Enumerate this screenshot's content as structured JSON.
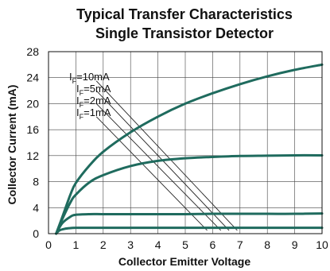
{
  "chart_data": {
    "type": "line",
    "title": "Typical Transfer Characteristics",
    "subtitle": "Single Transistor Detector",
    "xlabel": "Collector Emitter Voltage",
    "ylabel": "Collector Current (mA)",
    "xlim": [
      0,
      10
    ],
    "ylim": [
      0,
      28
    ],
    "xticks": [
      0,
      1,
      2,
      3,
      4,
      5,
      6,
      7,
      8,
      9,
      10
    ],
    "yticks": [
      0,
      4,
      8,
      12,
      16,
      20,
      24,
      28
    ],
    "grid": true,
    "line_color": "#1f6b5e",
    "series": [
      {
        "name": "IF=10mA",
        "label_main": "I",
        "label_sub": "F",
        "label_rest": "=10mA",
        "x": [
          0.28,
          0.5,
          0.8,
          1,
          1.5,
          2,
          3,
          4,
          5,
          6,
          7,
          8,
          9,
          10
        ],
        "y": [
          0,
          2.5,
          6.0,
          7.8,
          10.5,
          12.6,
          15.6,
          18.0,
          20.0,
          21.6,
          23.0,
          24.2,
          25.2,
          26.0
        ]
      },
      {
        "name": "IF=5mA",
        "label_main": "I",
        "label_sub": "F",
        "label_rest": "=5mA",
        "x": [
          0.28,
          0.5,
          0.8,
          1,
          1.5,
          2,
          3,
          4,
          5,
          6,
          7,
          8,
          9,
          10
        ],
        "y": [
          0,
          2.2,
          4.8,
          6.0,
          7.9,
          9.0,
          10.4,
          11.2,
          11.6,
          11.8,
          11.95,
          12.0,
          12.05,
          12.05
        ]
      },
      {
        "name": "IF=2mA",
        "label_main": "I",
        "label_sub": "F",
        "label_rest": "=2mA",
        "x": [
          0.28,
          0.5,
          0.8,
          1,
          1.5,
          2,
          3,
          4,
          5,
          6,
          7,
          8,
          9,
          10
        ],
        "y": [
          0,
          1.6,
          2.6,
          2.9,
          3.0,
          3.0,
          3.0,
          3.0,
          3.0,
          3.05,
          3.05,
          3.05,
          3.05,
          3.1
        ]
      },
      {
        "name": "IF=1mA",
        "label_main": "I",
        "label_sub": "F",
        "label_rest": "=1mA",
        "x": [
          0.28,
          0.4,
          0.6,
          0.8,
          1,
          2,
          3,
          4,
          5,
          6,
          7,
          8,
          9,
          10
        ],
        "y": [
          0,
          0.5,
          0.75,
          0.85,
          0.9,
          0.9,
          0.9,
          0.9,
          0.9,
          0.9,
          0.9,
          0.9,
          0.9,
          0.9
        ]
      }
    ],
    "annotation_leaders": [
      {
        "from": [
          1.75,
          23.5
        ],
        "to": [
          6.9,
          0.5
        ]
      },
      {
        "from": [
          1.75,
          22.0
        ],
        "to": [
          6.6,
          0.5
        ]
      },
      {
        "from": [
          1.75,
          20.0
        ],
        "to": [
          6.3,
          0.5
        ]
      },
      {
        "from": [
          1.75,
          18.0
        ],
        "to": [
          5.8,
          0.5
        ]
      }
    ]
  }
}
